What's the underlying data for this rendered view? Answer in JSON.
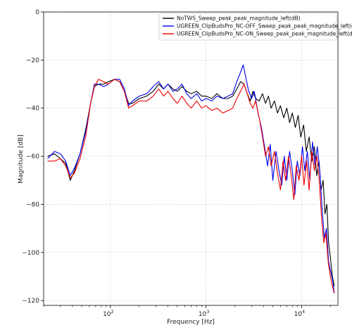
{
  "chart_data": {
    "type": "line",
    "xlabel": "Frequency [Hz]",
    "ylabel": "Magnitude [dB]",
    "xscale": "log",
    "xlim": [
      20,
      24000
    ],
    "ylim": [
      -122,
      0
    ],
    "grid": true,
    "legend_position": "top-right",
    "y_ticks": [
      0,
      -20,
      -40,
      -60,
      -80,
      -100,
      -120
    ],
    "x_ticks": [
      {
        "value": 100,
        "base": "10",
        "exp": "2"
      },
      {
        "value": 1000,
        "base": "10",
        "exp": "3"
      },
      {
        "value": 10000,
        "base": "10",
        "exp": "4"
      }
    ],
    "series": [
      {
        "name": "NoTWS_Sweep_peak_peak_magnitude_left(dB)",
        "color": "#000000",
        "points": [
          [
            22,
            -60
          ],
          [
            26,
            -59
          ],
          [
            30,
            -61
          ],
          [
            34,
            -63
          ],
          [
            38,
            -70
          ],
          [
            42,
            -66
          ],
          [
            48,
            -59
          ],
          [
            55,
            -49
          ],
          [
            62,
            -38
          ],
          [
            68,
            -31
          ],
          [
            75,
            -30
          ],
          [
            85,
            -30
          ],
          [
            95,
            -29
          ],
          [
            110,
            -28
          ],
          [
            125,
            -29
          ],
          [
            140,
            -33
          ],
          [
            155,
            -38
          ],
          [
            170,
            -38
          ],
          [
            200,
            -36
          ],
          [
            240,
            -35
          ],
          [
            280,
            -33
          ],
          [
            320,
            -30
          ],
          [
            360,
            -32
          ],
          [
            400,
            -30
          ],
          [
            450,
            -32
          ],
          [
            500,
            -33
          ],
          [
            560,
            -31
          ],
          [
            630,
            -33
          ],
          [
            700,
            -34
          ],
          [
            800,
            -33
          ],
          [
            900,
            -35
          ],
          [
            1000,
            -35
          ],
          [
            1150,
            -36
          ],
          [
            1300,
            -34
          ],
          [
            1500,
            -36
          ],
          [
            1700,
            -36
          ],
          [
            1900,
            -35
          ],
          [
            2100,
            -32
          ],
          [
            2300,
            -29
          ],
          [
            2500,
            -30
          ],
          [
            2700,
            -34
          ],
          [
            2900,
            -37
          ],
          [
            3100,
            -33
          ],
          [
            3300,
            -36
          ],
          [
            3600,
            -37
          ],
          [
            3900,
            -34
          ],
          [
            4200,
            -38
          ],
          [
            4500,
            -35
          ],
          [
            4800,
            -40
          ],
          [
            5200,
            -37
          ],
          [
            5600,
            -42
          ],
          [
            6000,
            -39
          ],
          [
            6500,
            -44
          ],
          [
            7000,
            -40
          ],
          [
            7500,
            -46
          ],
          [
            8000,
            -42
          ],
          [
            8600,
            -48
          ],
          [
            9200,
            -43
          ],
          [
            9800,
            -52
          ],
          [
            10500,
            -47
          ],
          [
            11200,
            -58
          ],
          [
            12000,
            -52
          ],
          [
            12800,
            -62
          ],
          [
            13600,
            -56
          ],
          [
            14400,
            -68
          ],
          [
            15200,
            -62
          ],
          [
            16000,
            -74
          ],
          [
            16800,
            -70
          ],
          [
            17600,
            -84
          ],
          [
            18400,
            -80
          ],
          [
            19200,
            -96
          ],
          [
            20000,
            -102
          ],
          [
            21000,
            -110
          ],
          [
            22000,
            -114
          ]
        ]
      },
      {
        "name": "UGREEN_ClipBudsPro_NC-OFF_Sweep_peak_peak_magnitude_left(dB)",
        "color": "#0000ee",
        "points": [
          [
            22,
            -61
          ],
          [
            26,
            -58
          ],
          [
            30,
            -59
          ],
          [
            34,
            -62
          ],
          [
            38,
            -68
          ],
          [
            42,
            -65
          ],
          [
            48,
            -59
          ],
          [
            55,
            -50
          ],
          [
            62,
            -38
          ],
          [
            68,
            -30
          ],
          [
            75,
            -30
          ],
          [
            85,
            -31
          ],
          [
            95,
            -30
          ],
          [
            110,
            -28
          ],
          [
            125,
            -28
          ],
          [
            140,
            -32
          ],
          [
            155,
            -39
          ],
          [
            170,
            -37
          ],
          [
            200,
            -35
          ],
          [
            240,
            -34
          ],
          [
            280,
            -31
          ],
          [
            320,
            -29
          ],
          [
            360,
            -32
          ],
          [
            400,
            -30
          ],
          [
            450,
            -33
          ],
          [
            500,
            -32
          ],
          [
            560,
            -30
          ],
          [
            630,
            -34
          ],
          [
            700,
            -36
          ],
          [
            800,
            -34
          ],
          [
            900,
            -37
          ],
          [
            1000,
            -36
          ],
          [
            1150,
            -37
          ],
          [
            1300,
            -35
          ],
          [
            1500,
            -36
          ],
          [
            1700,
            -35
          ],
          [
            1900,
            -34
          ],
          [
            2100,
            -29
          ],
          [
            2300,
            -25
          ],
          [
            2450,
            -22
          ],
          [
            2600,
            -27
          ],
          [
            2800,
            -33
          ],
          [
            3000,
            -36
          ],
          [
            3200,
            -33
          ],
          [
            3500,
            -42
          ],
          [
            3800,
            -48
          ],
          [
            4100,
            -56
          ],
          [
            4400,
            -64
          ],
          [
            4700,
            -55
          ],
          [
            5000,
            -70
          ],
          [
            5400,
            -58
          ],
          [
            5800,
            -66
          ],
          [
            6200,
            -72
          ],
          [
            6600,
            -60
          ],
          [
            7000,
            -70
          ],
          [
            7500,
            -58
          ],
          [
            8000,
            -66
          ],
          [
            8500,
            -76
          ],
          [
            9000,
            -62
          ],
          [
            9600,
            -68
          ],
          [
            10200,
            -56
          ],
          [
            10800,
            -66
          ],
          [
            11500,
            -58
          ],
          [
            12200,
            -70
          ],
          [
            13000,
            -54
          ],
          [
            13800,
            -64
          ],
          [
            14600,
            -56
          ],
          [
            15500,
            -66
          ],
          [
            16400,
            -82
          ],
          [
            17300,
            -94
          ],
          [
            18200,
            -90
          ],
          [
            19200,
            -104
          ],
          [
            20200,
            -108
          ],
          [
            21200,
            -112
          ],
          [
            22000,
            -117
          ]
        ]
      },
      {
        "name": "UGREEN_ClipBudsPro_NC-ON_Sweep_peak_peak_magnitude_left(dB)",
        "color": "#ee0000",
        "points": [
          [
            22,
            -62
          ],
          [
            26,
            -62
          ],
          [
            30,
            -61
          ],
          [
            34,
            -64
          ],
          [
            38,
            -69
          ],
          [
            42,
            -67
          ],
          [
            48,
            -61
          ],
          [
            55,
            -52
          ],
          [
            62,
            -38
          ],
          [
            68,
            -31
          ],
          [
            75,
            -28
          ],
          [
            85,
            -29
          ],
          [
            95,
            -30
          ],
          [
            110,
            -28
          ],
          [
            125,
            -29
          ],
          [
            140,
            -33
          ],
          [
            155,
            -40
          ],
          [
            170,
            -39
          ],
          [
            200,
            -37
          ],
          [
            240,
            -37
          ],
          [
            280,
            -35
          ],
          [
            320,
            -32
          ],
          [
            360,
            -35
          ],
          [
            400,
            -33
          ],
          [
            450,
            -36
          ],
          [
            500,
            -38
          ],
          [
            560,
            -35
          ],
          [
            630,
            -38
          ],
          [
            700,
            -40
          ],
          [
            800,
            -37
          ],
          [
            900,
            -40
          ],
          [
            1000,
            -39
          ],
          [
            1150,
            -41
          ],
          [
            1300,
            -40
          ],
          [
            1500,
            -42
          ],
          [
            1700,
            -41
          ],
          [
            1900,
            -40
          ],
          [
            2100,
            -36
          ],
          [
            2300,
            -33
          ],
          [
            2500,
            -30
          ],
          [
            2700,
            -34
          ],
          [
            2900,
            -38
          ],
          [
            3100,
            -40
          ],
          [
            3300,
            -37
          ],
          [
            3600,
            -44
          ],
          [
            3900,
            -52
          ],
          [
            4200,
            -60
          ],
          [
            4500,
            -56
          ],
          [
            4800,
            -64
          ],
          [
            5200,
            -58
          ],
          [
            5600,
            -67
          ],
          [
            6000,
            -74
          ],
          [
            6400,
            -62
          ],
          [
            6800,
            -70
          ],
          [
            7300,
            -60
          ],
          [
            7800,
            -68
          ],
          [
            8300,
            -78
          ],
          [
            8800,
            -64
          ],
          [
            9400,
            -70
          ],
          [
            10000,
            -60
          ],
          [
            10600,
            -72
          ],
          [
            11300,
            -62
          ],
          [
            12000,
            -74
          ],
          [
            12800,
            -58
          ],
          [
            13600,
            -66
          ],
          [
            14400,
            -60
          ],
          [
            15300,
            -70
          ],
          [
            16200,
            -86
          ],
          [
            17100,
            -96
          ],
          [
            18000,
            -92
          ],
          [
            19000,
            -104
          ],
          [
            20000,
            -110
          ],
          [
            21000,
            -114
          ],
          [
            22000,
            -117
          ]
        ]
      }
    ]
  }
}
